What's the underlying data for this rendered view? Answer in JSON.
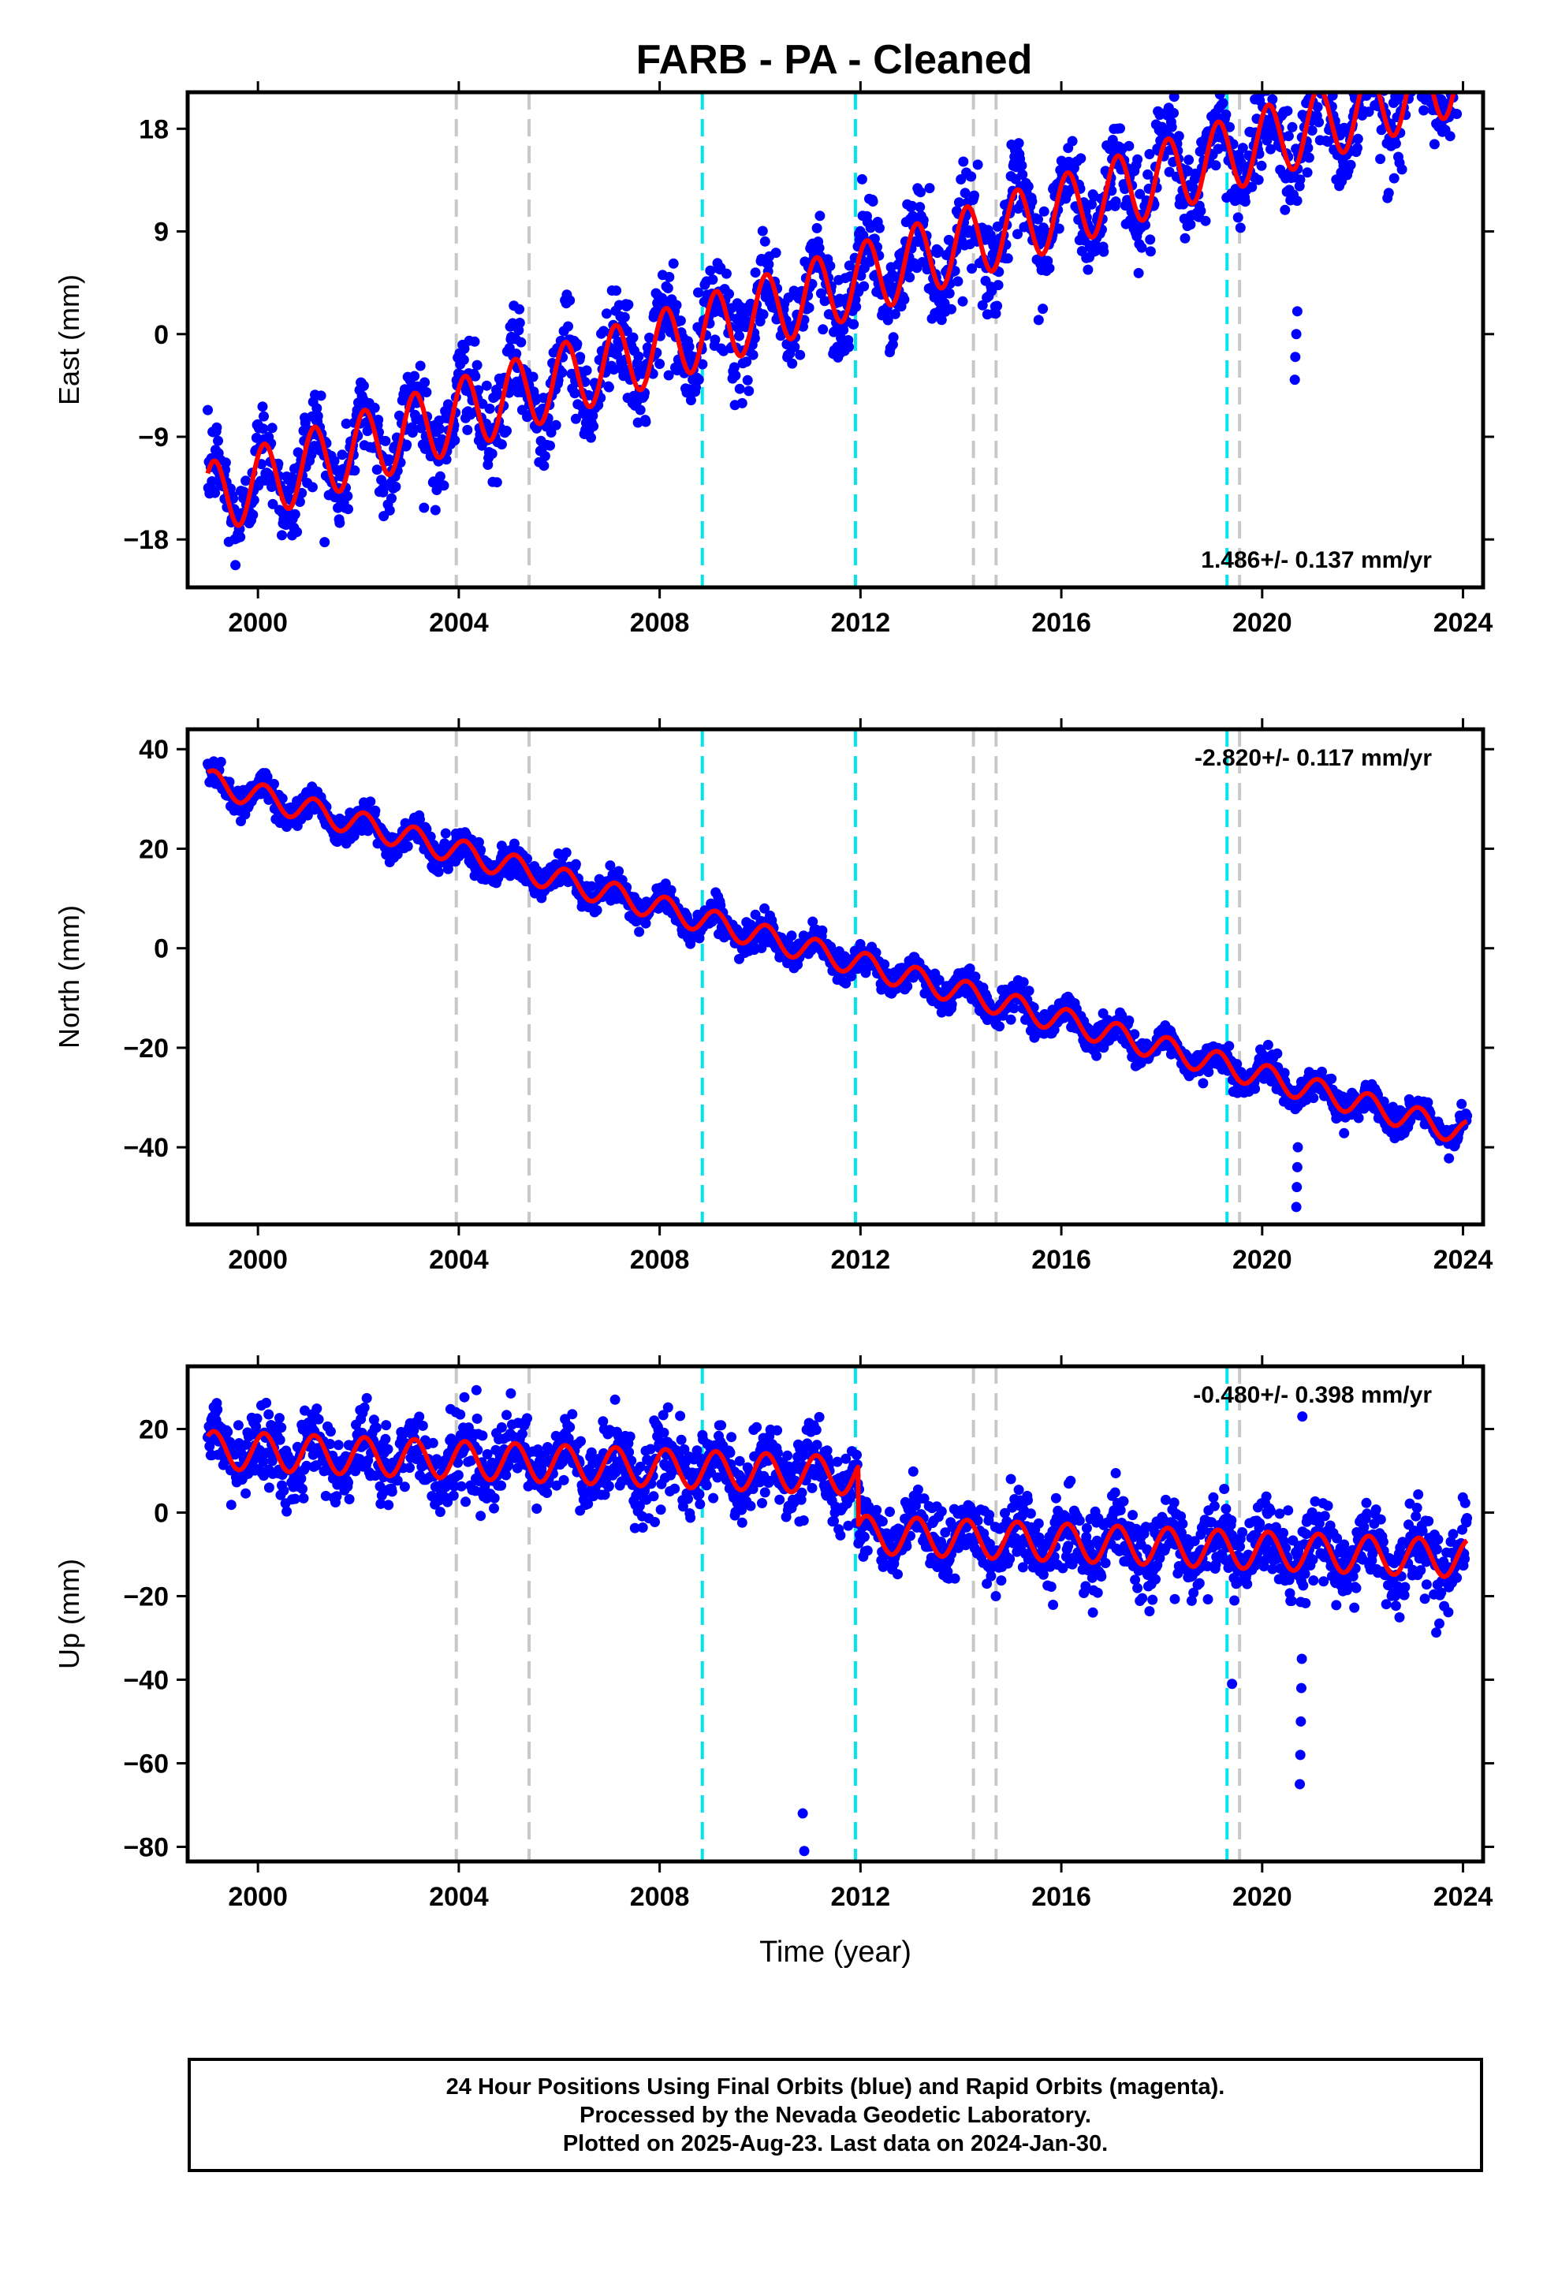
{
  "chart_data": [
    {
      "type": "scatter",
      "title": "FARB  - PA - Cleaned",
      "ylabel": "East (mm)",
      "xlabel": "",
      "xlim": [
        1998.6,
        2024.4
      ],
      "ylim": [
        -22.2,
        21.2
      ],
      "yticks": [
        -18,
        -9,
        0,
        9,
        18
      ],
      "xticks": [
        2000,
        2004,
        2008,
        2012,
        2016,
        2020,
        2024
      ],
      "rate_label": "1.486+/- 0.137 mm/yr",
      "rate_position": "bottom-right",
      "grid": false,
      "model": {
        "rate": 1.486,
        "value_at_start": -14.5,
        "start": 1999.0,
        "annual_amplitude": 3.2,
        "noise": 2.0,
        "offsets": []
      },
      "series": [
        {
          "values_description": "daily GPS positions",
          "color": "#0000ff"
        },
        {
          "values_description": "fitted model",
          "color": "#ff0000"
        }
      ]
    },
    {
      "type": "scatter",
      "title": "",
      "ylabel": "North (mm)",
      "xlabel": "",
      "xlim": [
        1998.6,
        2024.4
      ],
      "ylim": [
        -55.5,
        44
      ],
      "yticks": [
        -40,
        -20,
        0,
        20,
        40
      ],
      "xticks": [
        2000,
        2004,
        2008,
        2012,
        2016,
        2020,
        2024
      ],
      "rate_label": "-2.820+/- 0.117 mm/yr",
      "rate_position": "top-right",
      "grid": false,
      "model": {
        "rate": -2.82,
        "value_at_start": 33.5,
        "start": 1999.0,
        "annual_amplitude": 2.5,
        "noise": 1.5,
        "offsets": []
      },
      "series": [
        {
          "values_description": "daily GPS positions",
          "color": "#0000ff"
        },
        {
          "values_description": "fitted model",
          "color": "#ff0000"
        }
      ]
    },
    {
      "type": "scatter",
      "title": "",
      "ylabel": "Up (mm)",
      "xlabel": "Time (year)",
      "xlim": [
        1998.6,
        2024.4
      ],
      "ylim": [
        -83.5,
        35
      ],
      "yticks": [
        -80,
        -60,
        -40,
        -20,
        0,
        20
      ],
      "xticks": [
        2000,
        2004,
        2008,
        2012,
        2016,
        2020,
        2024
      ],
      "rate_label": "-0.480+/- 0.398 mm/yr",
      "rate_position": "top-right",
      "grid": false,
      "model": {
        "rate": -0.48,
        "value_at_start": 15.0,
        "start": 1999.0,
        "annual_amplitude": 4.5,
        "noise": 4.5,
        "offsets": [
          [
            2011.95,
            -14
          ]
        ]
      },
      "series": [
        {
          "values_description": "daily GPS positions",
          "color": "#0000ff"
        },
        {
          "values_description": "fitted model",
          "color": "#ff0000"
        }
      ]
    }
  ],
  "event_lines": [
    {
      "year": 2003.95,
      "color": "#c8c8c8",
      "kind": "equipment change"
    },
    {
      "year": 2005.4,
      "color": "#c8c8c8",
      "kind": "equipment change"
    },
    {
      "year": 2008.85,
      "color": "#00e5ee",
      "kind": "earthquake"
    },
    {
      "year": 2011.9,
      "color": "#00e5ee",
      "kind": "earthquake"
    },
    {
      "year": 2014.25,
      "color": "#c8c8c8",
      "kind": "equipment change"
    },
    {
      "year": 2014.7,
      "color": "#c8c8c8",
      "kind": "equipment change"
    },
    {
      "year": 2019.3,
      "color": "#00e5ee",
      "kind": "earthquake"
    },
    {
      "year": 2019.55,
      "color": "#c8c8c8",
      "kind": "equipment change"
    }
  ],
  "colors": {
    "points": "#0000ff",
    "model": "#ff0000",
    "frame": "#000000"
  },
  "footer": {
    "line1": "24 Hour Positions Using Final Orbits (blue) and Rapid Orbits (magenta).",
    "line2": "Processed by the Nevada Geodetic Laboratory.",
    "line3": "Plotted on 2025-Aug-23. Last data on 2024-Jan-30."
  }
}
